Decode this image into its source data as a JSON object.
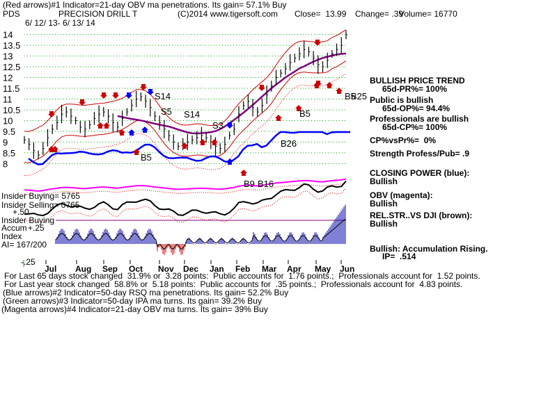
{
  "header": {
    "line1": "(Red arrows)#1 Indicator=21-day OBV ma penetrations. Its gain= 57.1% Buy",
    "ticker": "PDS",
    "company": "PRECISION DRILL T",
    "copyright": "(C)2014 www.tigersoft.com",
    "close": "Close=  13.99",
    "change": "Change= .39",
    "volume": "Volume= 16770",
    "daterange": "6/ 12/ 13- 6/ 13/ 14"
  },
  "right_panel": {
    "trend_title": "BULLISH PRICE TREND",
    "pr": "65d-PR%= 100%",
    "public": "Public is bullish",
    "op": "65d-OP%= 94.4%",
    "pros": "Professionals are bullish",
    "cp": "65d-CP%= 100%",
    "cpvspr": "CP%vsPr%=  0%",
    "strength": "Strength Profess/Pub= .9",
    "closing_power": "CLOSING POWER (blue):",
    "closing_power_val": "Bullish",
    "obv": "OBV (magenta):",
    "obv_val": "Bullish",
    "relstr": "REL.STR..VS DJI (brown):",
    "relstr_val": "Bullish",
    "accum": "Bullish: Accumulation Rising.",
    "ip": "IP=  .514"
  },
  "left_labels": {
    "insider_buying": "Insider Buying= 5765",
    "insider_selling": "Insider Selling= 0765",
    "insider_buying2": "Insider Buying",
    "plus50": "+.50",
    "accum": "Accum",
    "plus25": "+.25",
    "index": "Index",
    "ai": "AI= 167/200",
    "minus25": "-.25"
  },
  "signals": {
    "s14a": "S14",
    "s5": "S5",
    "s14b": "S14",
    "s3": "S3",
    "b5a": "B5",
    "b26": "B26",
    "b5b": "B5",
    "b9": "B9",
    "b16": "B16",
    "b5c": "B5",
    "b25": "B25"
  },
  "footer": {
    "l1": "For Last 65 days stock changed  31.9% or  3.28 points:  Public accounts for  1.76 points.;  Professionals account for  1.52 points.",
    "l2": "For Last year stock changed  58.8% or  5.18 points:  Public accounts for  .35 points.;  Professionals account for  4.83 points.",
    "l3": "(Blue arrows)#2 Indicator=50-day RSQ ma penetrations. Its gain= 52.2% Buy",
    "l4": "(Green arrows)#3 Indicator=50-day IPA ma turns. Its gain= 39.2% Buy",
    "l5": "(Magenta arrows)#4 Indicator=21-day OBV ma turns. Its gain= 39% Buy"
  },
  "colors": {
    "price": "#000000",
    "bands": "#cc0000",
    "ma": "#800080",
    "closing_power": "#0000ff",
    "obv": "#ff00ff",
    "accum_pos": "#0000aa",
    "accum_neg": "#cc0000",
    "grid": "#00aa00"
  },
  "chart_data": {
    "type": "line",
    "title": "PRECISION DRILL T",
    "y_ticks": [
      14,
      13.5,
      13,
      12.5,
      12,
      11.5,
      11,
      10.5,
      10,
      9.5,
      9,
      8.5,
      8
    ],
    "ylim": [
      7.85,
      14.15
    ],
    "months": [
      "Jul",
      "Aug",
      "Sep",
      "Oct",
      "Nov",
      "Dec",
      "Jan",
      "Feb",
      "Mar",
      "Apr",
      "May",
      "Jun"
    ],
    "series": [
      {
        "name": "",
        "values": [
          9.1,
          8.9,
          8.6,
          8.4,
          8.7,
          9.2,
          9.6,
          9.9,
          10.3,
          10.4,
          10.2,
          10.0,
          9.7,
          9.6,
          9.8,
          10.1,
          10.3,
          10.4,
          10.2,
          9.9,
          9.7,
          10.1,
          10.4,
          10.7,
          11.0,
          11.1,
          10.9,
          10.6,
          10.2,
          9.9,
          9.6,
          9.3,
          9.0,
          8.8,
          8.9,
          9.0,
          9.1,
          9.2,
          9.3,
          9.2,
          9.0,
          8.8,
          8.7,
          8.9,
          9.3,
          9.6,
          10.3,
          10.7,
          10.9,
          10.6,
          10.4,
          10.7,
          11.2,
          11.6,
          12.0,
          12.2,
          12.4,
          12.7,
          12.9,
          13.1,
          13.3,
          13.2,
          12.9,
          12.6,
          12.5,
          12.8,
          13.1,
          13.3,
          13.5,
          13.99
        ]
      }
    ]
  }
}
